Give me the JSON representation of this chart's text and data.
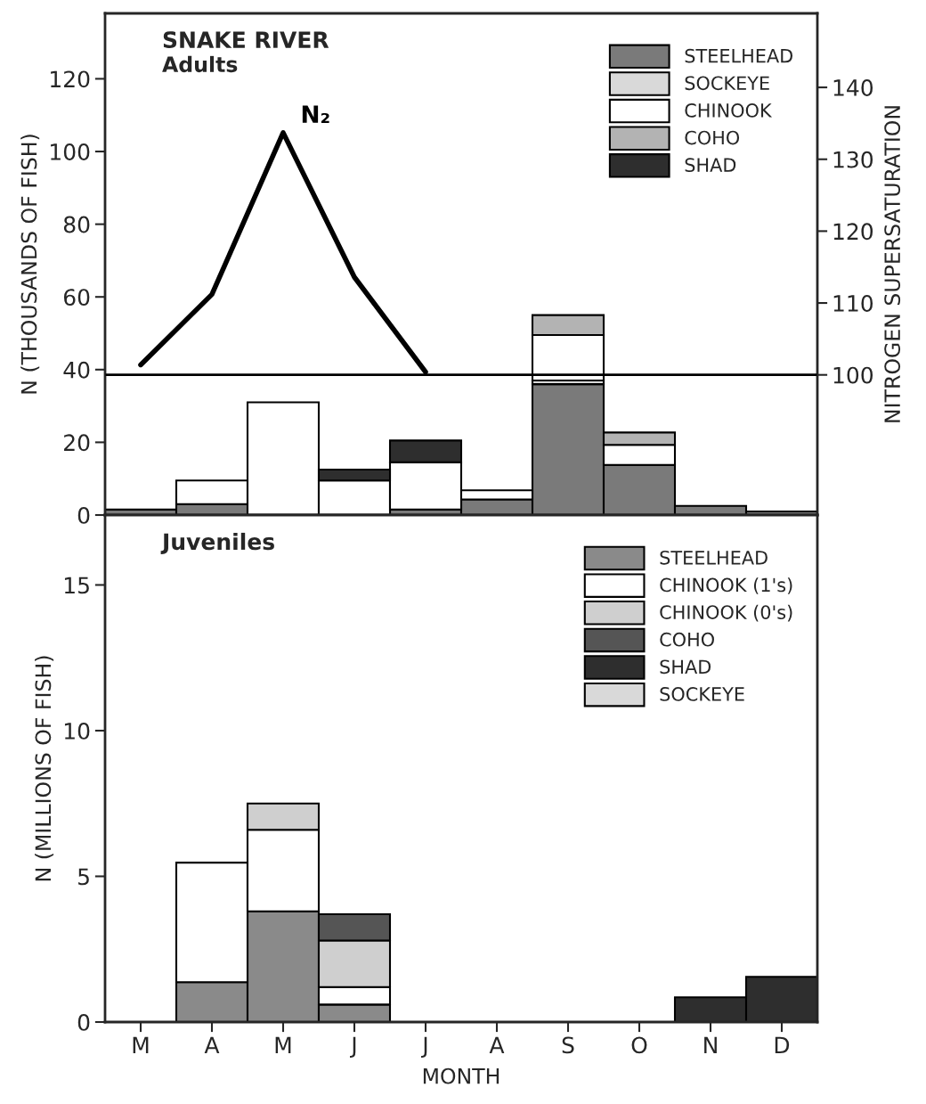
{
  "chart_data": [
    {
      "type": "bar",
      "title": "SNAKE RIVER",
      "subtitle": "Adults",
      "ylabel": "N (THOUSANDS OF FISH)",
      "y2label": "NITROGEN SUPERSATURATION",
      "stacked": true,
      "categories": [
        null,
        null,
        null,
        null,
        null,
        null,
        null,
        null,
        null,
        null
      ],
      "ylim": [
        0,
        138
      ],
      "yticks": [
        0,
        20,
        40,
        60,
        80,
        100,
        120
      ],
      "y2lim": [
        80.5,
        150.3
      ],
      "y2ticks": [
        100,
        110,
        120,
        130,
        140
      ],
      "tick_labels": "y",
      "legend": "top right",
      "grid": false,
      "ref_lines": [
        {
          "axis": "y2",
          "value": 100
        }
      ],
      "series": [
        {
          "name": "STEELHEAD",
          "color": "#7a7a7a",
          "values": [
            1.5,
            3,
            null,
            null,
            1.5,
            4.3,
            36,
            13.8,
            2.5,
            1
          ]
        },
        {
          "name": "SOCKEYE",
          "color": "#d9d9d9",
          "values": [
            null,
            null,
            null,
            null,
            null,
            null,
            1,
            null,
            null,
            null
          ]
        },
        {
          "name": "CHINOOK",
          "color": "#ffffff",
          "values": [
            null,
            6.5,
            31,
            9.5,
            13,
            2.5,
            12.5,
            5.5,
            null,
            null
          ]
        },
        {
          "name": "COHO",
          "color": "#b3b3b3",
          "values": [
            null,
            null,
            null,
            null,
            null,
            null,
            5.5,
            3.4,
            null,
            null
          ]
        },
        {
          "name": "SHAD",
          "color": "#2e2e2e",
          "values": [
            null,
            null,
            null,
            3,
            6,
            null,
            null,
            null,
            null,
            null
          ]
        },
        {
          "name": "N₂",
          "type": "line",
          "axis": "y2",
          "color": "#000000",
          "values": [
            101.4,
            111.2,
            133.7,
            113.6,
            100.4,
            null,
            null,
            null,
            null,
            null
          ]
        }
      ]
    },
    {
      "type": "bar",
      "title": "Juveniles",
      "ylabel": "N (MILLIONS OF FISH)",
      "xlabel": "MONTH",
      "stacked": true,
      "categories": [
        "M",
        "A",
        "M",
        "J",
        "J",
        "A",
        "S",
        "O",
        "N",
        "D"
      ],
      "ylim": [
        0,
        17.4
      ],
      "yticks": [
        0,
        5,
        10,
        15
      ],
      "legend": "top right",
      "grid": false,
      "series": [
        {
          "name": "STEELHEAD",
          "color": "#8a8a8a",
          "values": [
            null,
            1.37,
            3.8,
            0.6,
            null,
            null,
            null,
            null,
            null,
            null
          ]
        },
        {
          "name": "CHINOOK (1's)",
          "color": "#ffffff",
          "values": [
            null,
            4.1,
            2.8,
            0.6,
            null,
            null,
            null,
            null,
            null,
            null
          ]
        },
        {
          "name": "CHINOOK (0's)",
          "color": "#cfcfcf",
          "values": [
            null,
            null,
            0.9,
            1.6,
            null,
            null,
            null,
            null,
            null,
            null
          ]
        },
        {
          "name": "COHO",
          "color": "#555555",
          "values": [
            null,
            null,
            null,
            0.9,
            null,
            null,
            null,
            null,
            null,
            null
          ]
        },
        {
          "name": "SHAD",
          "color": "#2e2e2e",
          "values": [
            null,
            null,
            null,
            null,
            null,
            null,
            null,
            null,
            0.85,
            1.55
          ]
        },
        {
          "name": "SOCKEYE",
          "color": "#d9d9d9",
          "values": [
            null,
            null,
            null,
            null,
            null,
            null,
            null,
            null,
            null,
            null
          ]
        }
      ]
    }
  ]
}
